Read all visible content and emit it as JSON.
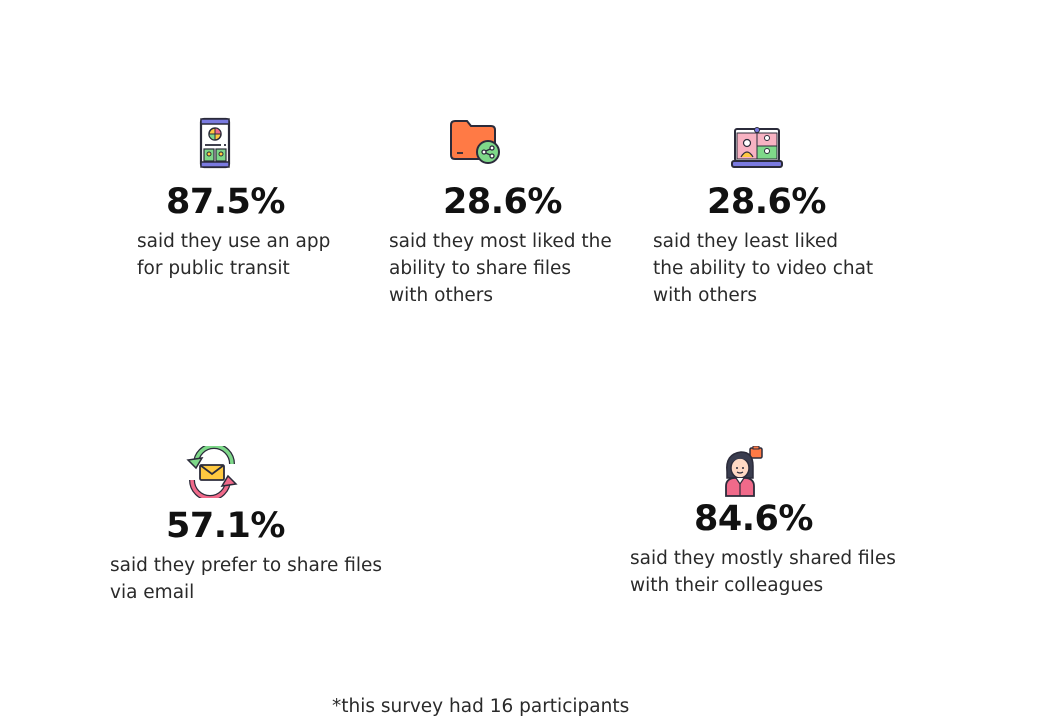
{
  "stats": [
    {
      "icon": "smartphone-transit-app-icon",
      "value": "87.5%",
      "description": "said they use an app\nfor public transit"
    },
    {
      "icon": "shared-folder-icon",
      "value": "28.6%",
      "description": "said they most liked the\nability to share files\nwith others"
    },
    {
      "icon": "video-chat-laptop-icon",
      "value": "28.6%",
      "description": "said they least liked\nthe ability to video chat\nwith others"
    },
    {
      "icon": "email-exchange-icon",
      "value": "57.1%",
      "description": "said they prefer to share files\nvia email"
    },
    {
      "icon": "colleague-person-icon",
      "value": "84.6%",
      "description": "said they mostly shared files\nwith their colleagues"
    }
  ],
  "footnote": "*this survey had 16 participants",
  "colors": {
    "text": "#1a1a1a",
    "orange": "#ff7a45",
    "green": "#7ed889",
    "pink": "#f06a8a",
    "purple": "#6b6bd6",
    "yellow": "#ffc940"
  }
}
